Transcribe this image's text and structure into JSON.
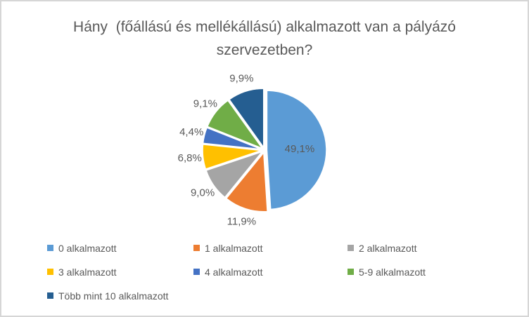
{
  "frame": {
    "background_color": "#FFFFFF",
    "border_color": "#D6D6D6"
  },
  "chart_data": {
    "type": "pie",
    "title": "Hány  (főállású és mellékállású) alkalmazott van a pályázó szervezetben?",
    "categories": [
      "0 alkalmazott",
      "1 alkalmazott",
      "2 alkalmazott",
      "3 alkalmazott",
      "4 alkalmazott",
      "5-9 alkalmazott",
      "Több mint 10 alkalmazott"
    ],
    "values": [
      49.1,
      11.9,
      9.0,
      6.8,
      4.4,
      9.1,
      9.9
    ],
    "data_labels": [
      "49,1%",
      "11,9%",
      "9,0%",
      "6,8%",
      "4,4%",
      "9,1%",
      "9,9%"
    ],
    "colors": [
      "#5B9BD5",
      "#ED7D31",
      "#A5A5A5",
      "#FFC000",
      "#4472C4",
      "#70AD47",
      "#255E91"
    ],
    "start_angle_deg": 0,
    "direction": "clockwise",
    "slice_border_color": "#FFFFFF",
    "label_text_color": "#595959",
    "title_text_color": "#595959",
    "legend_position": "bottom",
    "legend_text_color": "#595959"
  }
}
